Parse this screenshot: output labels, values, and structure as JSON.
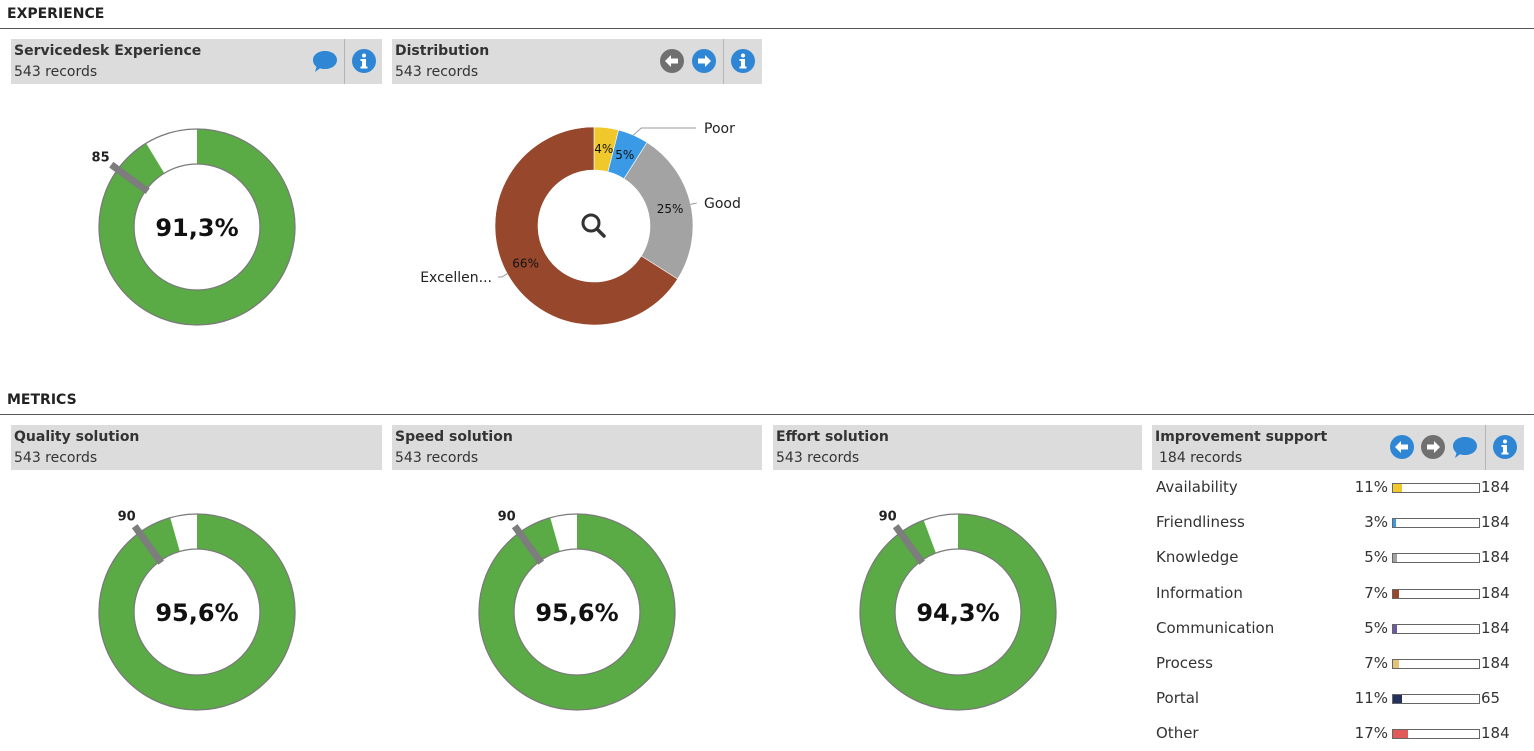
{
  "sections": {
    "experience": "EXPERIENCE",
    "metrics": "METRICS"
  },
  "servicedesk": {
    "title": "Servicedesk Experience",
    "records": "543 records",
    "value_label": "91,3%",
    "value": 91.3,
    "target_label": "85",
    "target": 85
  },
  "distribution": {
    "title": "Distribution",
    "records": "543 records",
    "slices": [
      {
        "label": "",
        "pct_label": "4%",
        "value": 4,
        "color": "#f0c82c"
      },
      {
        "label": "Poor",
        "pct_label": "5%",
        "value": 5,
        "color": "#3a9ae6"
      },
      {
        "label": "Good",
        "pct_label": "25%",
        "value": 25,
        "color": "#a3a3a3"
      },
      {
        "label": "Excellen...",
        "pct_label": "66%",
        "value": 66,
        "color": "#96472c"
      }
    ]
  },
  "metrics": [
    {
      "title": "Quality solution",
      "records": "543 records",
      "value_label": "95,6%",
      "value": 95.6,
      "target_label": "90",
      "target": 90
    },
    {
      "title": "Speed solution",
      "records": "543 records",
      "value_label": "95,6%",
      "value": 95.6,
      "target_label": "90",
      "target": 90
    },
    {
      "title": "Effort solution",
      "records": "543 records",
      "value_label": "94,3%",
      "value": 94.3,
      "target_label": "90",
      "target": 90
    }
  ],
  "improvement": {
    "title": "Improvement support",
    "records": "184 records",
    "rows": [
      {
        "label": "Availability",
        "pct": "11%",
        "value": 0.11,
        "count": "184",
        "color": "#f0c82c"
      },
      {
        "label": "Friendliness",
        "pct": "3%",
        "value": 0.03,
        "count": "184",
        "color": "#3a9ae6"
      },
      {
        "label": "Knowledge",
        "pct": "5%",
        "value": 0.05,
        "count": "184",
        "color": "#a3a3a3"
      },
      {
        "label": "Information",
        "pct": "7%",
        "value": 0.07,
        "count": "184",
        "color": "#96472c"
      },
      {
        "label": "Communication",
        "pct": "5%",
        "value": 0.05,
        "count": "184",
        "color": "#6b5aa0"
      },
      {
        "label": "Process",
        "pct": "7%",
        "value": 0.07,
        "count": "184",
        "color": "#e3c27a"
      },
      {
        "label": "Portal",
        "pct": "11%",
        "value": 0.11,
        "count": "65",
        "color": "#22315e"
      },
      {
        "label": "Other",
        "pct": "17%",
        "value": 0.17,
        "count": "184",
        "color": "#e05a5a"
      }
    ]
  },
  "colors": {
    "gauge_fill": "#5aab45",
    "icon_blue": "#2e86d4",
    "icon_gray": "#707070",
    "header_bg": "#dcdcdc"
  },
  "icons": {
    "comment": "comment-icon",
    "info": "info-icon",
    "prev": "arrow-left-icon",
    "next": "arrow-right-icon",
    "search": "search-icon"
  }
}
